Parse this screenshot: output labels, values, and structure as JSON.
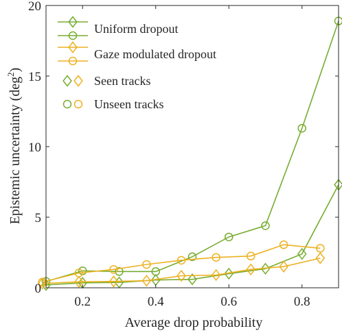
{
  "chart_data": {
    "type": "line",
    "xlabel": "Average drop probability",
    "ylabel_main": "Epistemic uncertainty (deg",
    "ylabel_sup": "2",
    "ylabel_close": ")",
    "xlim": [
      0.1,
      0.9
    ],
    "ylim": [
      0,
      20
    ],
    "xticks": [
      0.2,
      0.4,
      0.6,
      0.8
    ],
    "xtick_labels": [
      "0.2",
      "0.4",
      "0.6",
      "0.8"
    ],
    "yticks": [
      0,
      5,
      10,
      15,
      20
    ],
    "ytick_labels": [
      "0",
      "5",
      "10",
      "15",
      "20"
    ],
    "grid": false,
    "legend_position": "top-left",
    "colors": {
      "uniform": "#77ac30",
      "gaze": "#edb120"
    },
    "series": [
      {
        "name": "Uniform dropout",
        "track": "seen",
        "color": "uniform",
        "marker": "diamond",
        "x": [
          0.1,
          0.2,
          0.3,
          0.4,
          0.5,
          0.6,
          0.7,
          0.8,
          0.9
        ],
        "y": [
          0.2,
          0.35,
          0.38,
          0.55,
          0.6,
          1.0,
          1.35,
          2.4,
          7.3
        ]
      },
      {
        "name": "Uniform dropout",
        "track": "unseen",
        "color": "uniform",
        "marker": "circle",
        "x": [
          0.1,
          0.2,
          0.3,
          0.4,
          0.5,
          0.6,
          0.7,
          0.8,
          0.9
        ],
        "y": [
          0.45,
          1.2,
          1.15,
          1.15,
          2.2,
          3.6,
          4.4,
          11.3,
          18.9
        ]
      },
      {
        "name": "Gaze modulated dropout",
        "track": "seen",
        "color": "gaze",
        "marker": "diamond",
        "x": [
          0.09,
          0.19,
          0.285,
          0.375,
          0.47,
          0.565,
          0.66,
          0.75,
          0.85
        ],
        "y": [
          0.3,
          0.42,
          0.45,
          0.5,
          0.85,
          0.9,
          1.3,
          1.5,
          2.1
        ]
      },
      {
        "name": "Gaze modulated dropout",
        "track": "unseen",
        "color": "gaze",
        "marker": "circle",
        "x": [
          0.09,
          0.19,
          0.285,
          0.375,
          0.47,
          0.565,
          0.66,
          0.75,
          0.85
        ],
        "y": [
          0.4,
          1.05,
          1.3,
          1.65,
          1.95,
          2.15,
          2.25,
          3.05,
          2.8
        ]
      }
    ],
    "legend": [
      {
        "label": "Uniform dropout",
        "kind": "line",
        "color": "uniform"
      },
      {
        "label": "Gaze modulated dropout",
        "kind": "line",
        "color": "gaze"
      },
      {
        "label": "Seen tracks",
        "kind": "diamonds"
      },
      {
        "label": "Unseen tracks",
        "kind": "circles"
      }
    ]
  }
}
